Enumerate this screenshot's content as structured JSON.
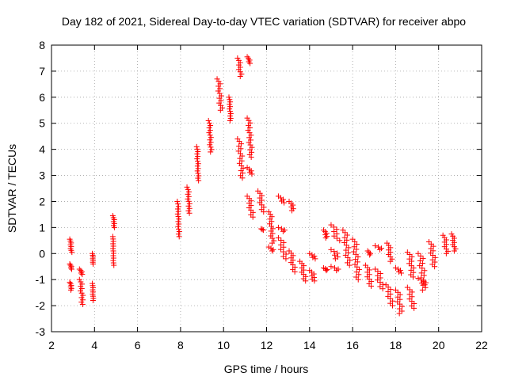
{
  "chart_data": {
    "type": "scatter",
    "title": "Day 182 of 2021, Sidereal Day-to-day VTEC variation (SDTVAR) for receiver abpo",
    "xlabel": "GPS time / hours",
    "ylabel": "SDTVAR / TECUs",
    "xlim": [
      2,
      22
    ],
    "ylim": [
      -3,
      8
    ],
    "xticks": [
      "2",
      "4",
      "6",
      "8",
      "10",
      "12",
      "14",
      "16",
      "18",
      "20",
      "22"
    ],
    "yticks": [
      "-3",
      "-2",
      "-1",
      "0",
      "1",
      "2",
      "3",
      "4",
      "5",
      "6",
      "7",
      "8"
    ],
    "grid": true,
    "marker": "+",
    "color": "#ff0000",
    "segments": [
      {
        "x0": 2.85,
        "x1": 2.95,
        "y0": 0.55,
        "y1": 0.05
      },
      {
        "x0": 2.85,
        "x1": 2.95,
        "y0": -0.4,
        "y1": -0.6
      },
      {
        "x0": 2.85,
        "x1": 2.95,
        "y0": -1.1,
        "y1": -1.4
      },
      {
        "x0": 3.3,
        "x1": 3.45,
        "y0": -0.6,
        "y1": -0.8
      },
      {
        "x0": 3.3,
        "x1": 3.5,
        "y0": -1.0,
        "y1": -1.95
      },
      {
        "x0": 3.9,
        "x1": 3.95,
        "y0": 0.0,
        "y1": -0.4
      },
      {
        "x0": 3.9,
        "x1": 3.95,
        "y0": -1.15,
        "y1": -1.8
      },
      {
        "x0": 4.85,
        "x1": 4.95,
        "y0": 1.45,
        "y1": 1.0
      },
      {
        "x0": 4.85,
        "x1": 4.9,
        "y0": 0.65,
        "y1": -0.45
      },
      {
        "x0": 7.85,
        "x1": 7.95,
        "y0": 2.0,
        "y1": 0.65
      },
      {
        "x0": 8.3,
        "x1": 8.45,
        "y0": 2.55,
        "y1": 1.55
      },
      {
        "x0": 8.75,
        "x1": 8.85,
        "y0": 4.1,
        "y1": 2.8
      },
      {
        "x0": 9.3,
        "x1": 9.45,
        "y0": 5.1,
        "y1": 3.9
      },
      {
        "x0": 9.7,
        "x1": 9.95,
        "y0": 6.7,
        "y1": 5.5
      },
      {
        "x0": 10.25,
        "x1": 10.35,
        "y0": 6.0,
        "y1": 5.1
      },
      {
        "x0": 10.65,
        "x1": 10.85,
        "y0": 7.5,
        "y1": 6.8
      },
      {
        "x0": 10.65,
        "x1": 10.95,
        "y0": 4.4,
        "y1": 2.9
      },
      {
        "x0": 11.1,
        "x1": 11.25,
        "y0": 7.55,
        "y1": 7.3
      },
      {
        "x0": 11.1,
        "x1": 11.35,
        "y0": 5.2,
        "y1": 3.7
      },
      {
        "x0": 11.1,
        "x1": 11.35,
        "y0": 3.3,
        "y1": 3.05
      },
      {
        "x0": 11.1,
        "x1": 11.4,
        "y0": 2.2,
        "y1": 1.4
      },
      {
        "x0": 11.6,
        "x1": 11.9,
        "y0": 2.4,
        "y1": 1.6
      },
      {
        "x0": 11.75,
        "x1": 11.85,
        "y0": 0.95,
        "y1": 0.9
      },
      {
        "x0": 12.1,
        "x1": 12.35,
        "y0": 1.6,
        "y1": 0.4
      },
      {
        "x0": 12.1,
        "x1": 12.35,
        "y0": 0.25,
        "y1": 0.1
      },
      {
        "x0": 12.55,
        "x1": 12.85,
        "y0": 2.2,
        "y1": 1.95
      },
      {
        "x0": 12.55,
        "x1": 12.9,
        "y0": 1.0,
        "y1": 0.85
      },
      {
        "x0": 12.55,
        "x1": 12.95,
        "y0": 0.6,
        "y1": -0.2
      },
      {
        "x0": 13.05,
        "x1": 13.35,
        "y0": 0.1,
        "y1": -0.7
      },
      {
        "x0": 13.05,
        "x1": 13.3,
        "y0": 2.0,
        "y1": 1.65
      },
      {
        "x0": 13.55,
        "x1": 13.85,
        "y0": -0.3,
        "y1": -1.05
      },
      {
        "x0": 14.0,
        "x1": 14.3,
        "y0": 0.0,
        "y1": -0.2
      },
      {
        "x0": 14.0,
        "x1": 14.3,
        "y0": -0.65,
        "y1": -1.05
      },
      {
        "x0": 14.65,
        "x1": 14.85,
        "y0": 0.9,
        "y1": 0.6
      },
      {
        "x0": 14.65,
        "x1": 14.85,
        "y0": -0.55,
        "y1": -0.65
      },
      {
        "x0": 15.0,
        "x1": 15.4,
        "y0": 1.1,
        "y1": 0.5
      },
      {
        "x0": 15.0,
        "x1": 15.4,
        "y0": 0.15,
        "y1": -0.2
      },
      {
        "x0": 15.0,
        "x1": 15.4,
        "y0": -0.5,
        "y1": -0.65
      },
      {
        "x0": 15.55,
        "x1": 15.9,
        "y0": 0.9,
        "y1": -0.45
      },
      {
        "x0": 16.0,
        "x1": 16.35,
        "y0": 0.55,
        "y1": -1.0
      },
      {
        "x0": 16.6,
        "x1": 16.9,
        "y0": -0.45,
        "y1": -1.25
      },
      {
        "x0": 16.7,
        "x1": 16.85,
        "y0": 0.1,
        "y1": -0.05
      },
      {
        "x0": 17.05,
        "x1": 17.45,
        "y0": -0.6,
        "y1": -1.35
      },
      {
        "x0": 17.05,
        "x1": 17.4,
        "y0": 0.3,
        "y1": 0.15
      },
      {
        "x0": 17.55,
        "x1": 17.9,
        "y0": -1.2,
        "y1": -2.0
      },
      {
        "x0": 17.6,
        "x1": 17.85,
        "y0": 0.4,
        "y1": -0.3
      },
      {
        "x0": 18.0,
        "x1": 18.35,
        "y0": -1.4,
        "y1": -2.3
      },
      {
        "x0": 18.0,
        "x1": 18.3,
        "y0": -0.55,
        "y1": -0.75
      },
      {
        "x0": 18.55,
        "x1": 18.9,
        "y0": -1.3,
        "y1": -2.1
      },
      {
        "x0": 18.55,
        "x1": 18.9,
        "y0": 0.05,
        "y1": -0.9
      },
      {
        "x0": 19.05,
        "x1": 19.45,
        "y0": 0.0,
        "y1": -1.4
      },
      {
        "x0": 19.05,
        "x1": 19.4,
        "y0": -0.95,
        "y1": -1.2
      },
      {
        "x0": 19.55,
        "x1": 19.9,
        "y0": 0.45,
        "y1": -0.5
      },
      {
        "x0": 20.2,
        "x1": 20.45,
        "y0": 0.7,
        "y1": 0.0
      },
      {
        "x0": 20.6,
        "x1": 20.8,
        "y0": 0.75,
        "y1": 0.1
      }
    ]
  }
}
